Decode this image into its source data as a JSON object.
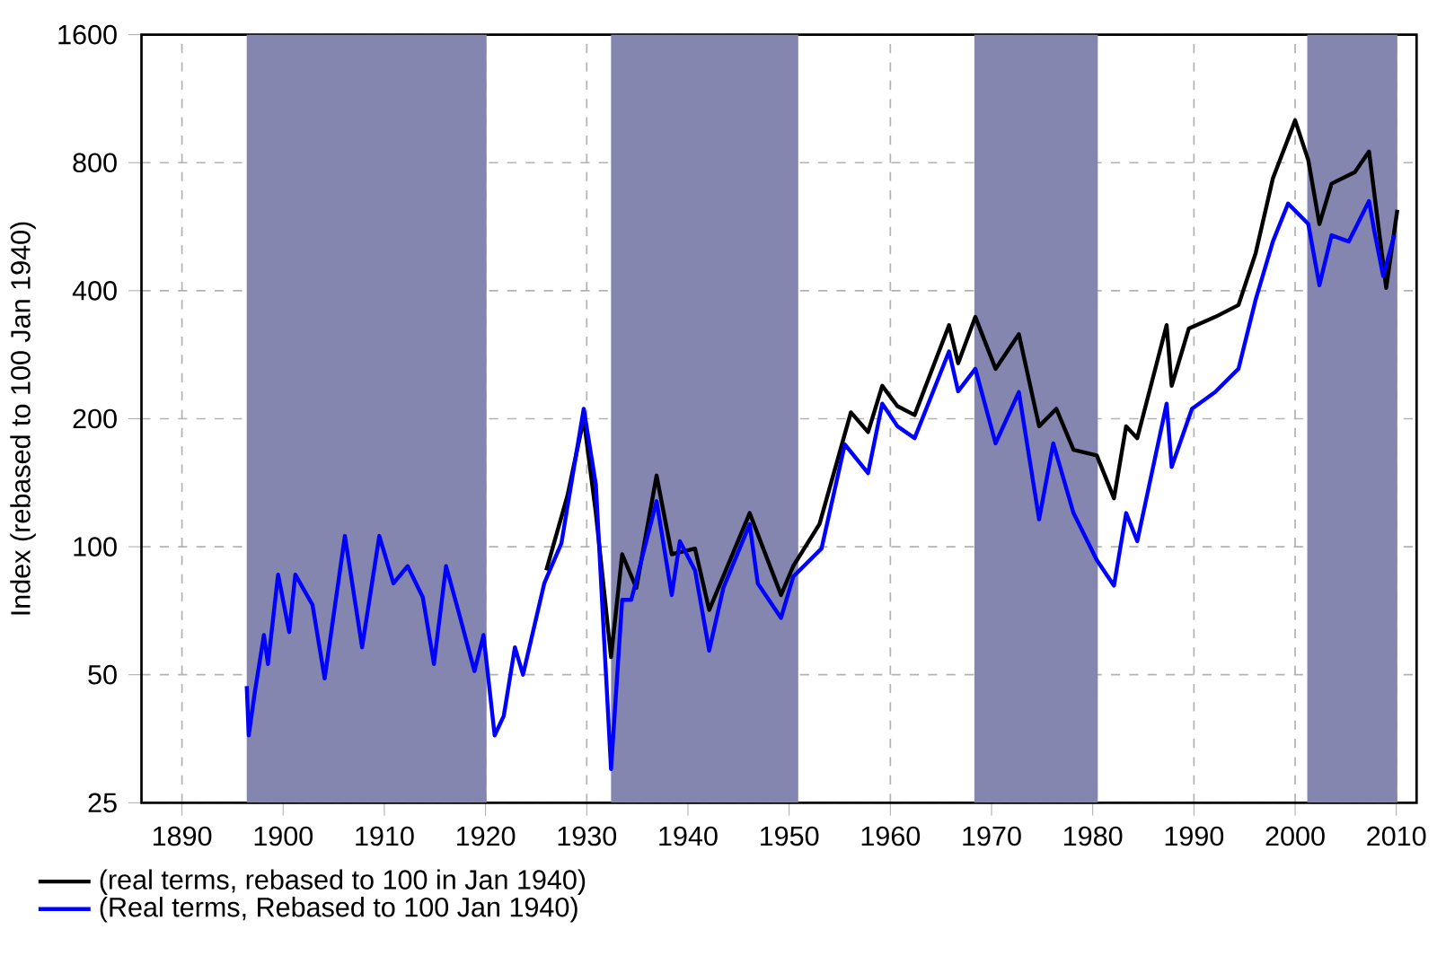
{
  "chart_data": {
    "type": "line",
    "ylabel": "Index (rebased to 100 Jan 1940)",
    "xlim": [
      1886,
      2012
    ],
    "xticks": [
      1890,
      1900,
      1910,
      1920,
      1930,
      1940,
      1950,
      1960,
      1970,
      1980,
      1990,
      2000,
      2010
    ],
    "ylim": [
      25,
      1600
    ],
    "yticks": [
      25,
      50,
      100,
      200,
      400,
      800,
      1600
    ],
    "log": "y",
    "grid": true,
    "legend": "bottom",
    "bands": [
      {
        "axis": "x",
        "from": 1896.4,
        "to": 1920.1,
        "color": "#8486b0"
      },
      {
        "axis": "x",
        "from": 1932.4,
        "to": 1950.9,
        "color": "#8486b0"
      },
      {
        "axis": "x",
        "from": 1968.3,
        "to": 1980.5,
        "color": "#8486b0"
      },
      {
        "axis": "x",
        "from": 2001.2,
        "to": 2010.1,
        "color": "#8486b0"
      }
    ],
    "series": [
      {
        "name": "(real terms, rebased to 100 in Jan 1940)",
        "color": "#000000",
        "x": [
          1926.0,
          1928.1,
          1929.7,
          1930.9,
          1932.4,
          1933.5,
          1934.9,
          1936.9,
          1938.4,
          1940.7,
          1942.1,
          1946.1,
          1949.2,
          1950.4,
          1953.0,
          1956.1,
          1957.8,
          1959.2,
          1960.7,
          1962.4,
          1965.8,
          1966.7,
          1968.4,
          1970.4,
          1972.7,
          1974.7,
          1976.4,
          1978.1,
          1980.4,
          1982.1,
          1983.3,
          1984.4,
          1987.3,
          1987.8,
          1989.5,
          1992.1,
          1994.4,
          1996.1,
          1997.8,
          2000.0,
          2001.3,
          2002.4,
          2003.6,
          2005.9,
          2007.3,
          2009.0,
          2010.1
        ],
        "values": [
          88,
          132,
          200,
          120,
          55,
          96,
          80,
          147,
          96,
          99,
          71,
          120,
          77,
          90,
          113,
          207,
          186,
          239,
          214,
          204,
          332,
          270,
          347,
          262,
          316,
          192,
          211,
          169,
          164,
          130,
          192,
          180,
          332,
          239,
          326,
          347,
          370,
          490,
          735,
          1006,
          811,
          574,
          714,
          760,
          850,
          406,
          620
        ]
      },
      {
        "name": "(Real terms, Rebased to 100 Jan 1940)",
        "color": "#0000ff",
        "x": [
          1896.4,
          1896.6,
          1897.2,
          1898.1,
          1898.5,
          1899.5,
          1900.6,
          1901.2,
          1902.9,
          1904.1,
          1906.1,
          1907.8,
          1909.5,
          1910.9,
          1912.3,
          1913.8,
          1914.9,
          1916.1,
          1917.5,
          1918.9,
          1919.8,
          1920.9,
          1921.8,
          1922.9,
          1923.7,
          1925.8,
          1927.5,
          1929.7,
          1930.9,
          1932.4,
          1933.5,
          1934.4,
          1936.9,
          1938.4,
          1939.2,
          1940.7,
          1942.1,
          1943.5,
          1946.1,
          1946.9,
          1949.2,
          1950.4,
          1953.2,
          1955.5,
          1957.8,
          1959.2,
          1960.7,
          1962.4,
          1965.8,
          1966.7,
          1968.4,
          1970.4,
          1972.7,
          1974.7,
          1976.1,
          1978.1,
          1980.4,
          1982.1,
          1983.3,
          1984.4,
          1987.3,
          1987.8,
          1989.8,
          1992.1,
          1994.4,
          1996.1,
          1997.8,
          1999.3,
          2001.3,
          2002.4,
          2003.6,
          2005.3,
          2007.3,
          2007.8,
          2008.7,
          2009.8
        ],
        "values": [
          47,
          36,
          45.5,
          62,
          53,
          86,
          63,
          86,
          73,
          49,
          106,
          58,
          106,
          82,
          90,
          76,
          53,
          90,
          68,
          51,
          62,
          36,
          40,
          58,
          50,
          82,
          102,
          211,
          140,
          30,
          75,
          75,
          128,
          77,
          103,
          88,
          57,
          80,
          113,
          82,
          68,
          85,
          99,
          174,
          149,
          217,
          192,
          180,
          288,
          232,
          262,
          175,
          231,
          116,
          175,
          120,
          93,
          81,
          120,
          103,
          217,
          154,
          211,
          231,
          262,
          381,
          522,
          641,
          574,
          412,
          540,
          522,
          650,
          556,
          433,
          540
        ]
      }
    ]
  }
}
